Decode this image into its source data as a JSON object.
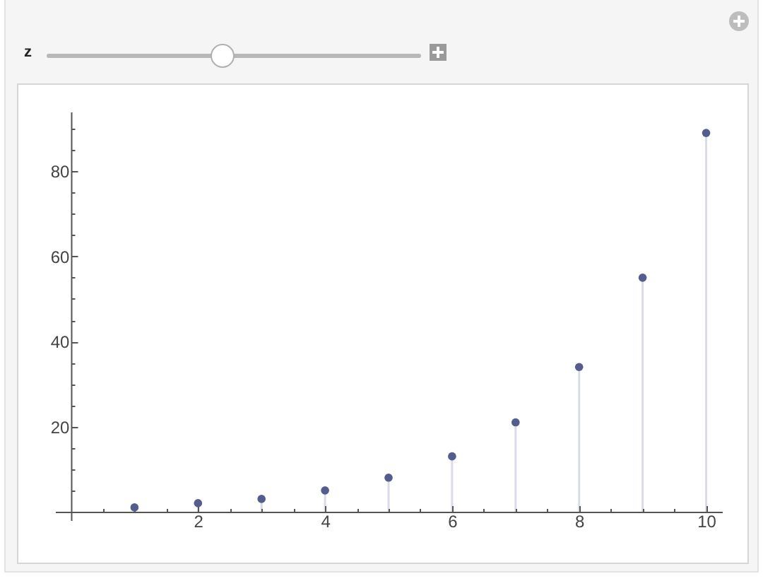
{
  "chart_data": {
    "type": "lollipop",
    "x": [
      1,
      2,
      3,
      4,
      5,
      6,
      7,
      8,
      9,
      10
    ],
    "values": [
      1,
      2,
      3,
      5,
      8,
      13,
      21,
      34,
      55,
      89
    ],
    "color": "#535e8f",
    "marker": "circle",
    "xlim": [
      -0.25,
      10.25
    ],
    "ylim": [
      -2,
      94
    ],
    "xticks": [
      {
        "value": 0.5,
        "label": null
      },
      {
        "value": 1,
        "label": null
      },
      {
        "value": 1.5,
        "label": null
      },
      2,
      {
        "value": 2.5,
        "label": null
      },
      {
        "value": 3,
        "label": null
      },
      {
        "value": 3.5,
        "label": null
      },
      4,
      {
        "value": 4.5,
        "label": null
      },
      {
        "value": 5,
        "label": null
      },
      {
        "value": 5.5,
        "label": null
      },
      6,
      {
        "value": 6.5,
        "label": null
      },
      {
        "value": 7,
        "label": null
      },
      {
        "value": 7.5,
        "label": null
      },
      8,
      {
        "value": 8.5,
        "label": null
      },
      {
        "value": 9,
        "label": null
      },
      {
        "value": 9.5,
        "label": null
      },
      10
    ],
    "yticks": [
      {
        "value": 5,
        "label": null
      },
      {
        "value": 10,
        "label": null
      },
      {
        "value": 15,
        "label": null
      },
      20,
      {
        "value": 25,
        "label": null
      },
      {
        "value": 30,
        "label": null
      },
      {
        "value": 35,
        "label": null
      },
      40,
      {
        "value": 45,
        "label": null
      },
      {
        "value": 50,
        "label": null
      },
      {
        "value": 55,
        "label": null
      },
      60,
      {
        "value": 65,
        "label": null
      },
      {
        "value": 70,
        "label": null
      },
      {
        "value": 75,
        "label": null
      },
      80,
      {
        "value": 85,
        "label": null
      },
      {
        "value": 90,
        "label": null
      }
    ],
    "annotations": [
      "z"
    ]
  }
}
